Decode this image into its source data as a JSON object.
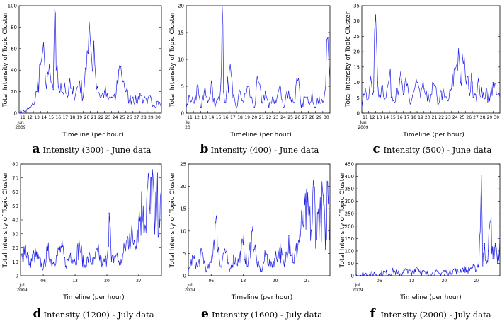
{
  "chart_data": [
    {
      "type": "line",
      "letter": "a",
      "caption": "Intensity (300) - June data",
      "ylabel": "Total Intensity of Topic Cluster",
      "xlabel": "Timeline (per hour)",
      "ylim": [
        0,
        100
      ],
      "yticks": [
        "0",
        "20",
        "40",
        "60",
        "80",
        "100"
      ],
      "xlim": [
        11,
        31
      ],
      "xticks": [
        "11",
        "12",
        "13",
        "14",
        "15",
        "16",
        "17",
        "18",
        "19",
        "20",
        "21",
        "22",
        "23",
        "24",
        "25",
        "26",
        "27",
        "28",
        "29",
        "30"
      ],
      "date_label": [
        "Jun",
        "2009"
      ],
      "series": [
        {
          "name": "intensity",
          "x": [
            11,
            12,
            12.6,
            13,
            13.5,
            14,
            14.3,
            14.7,
            15,
            15.5,
            15.8,
            16,
            16.2,
            16.5,
            17,
            17.4,
            17.8,
            18,
            18.5,
            19,
            19.5,
            20,
            20.3,
            20.7,
            21,
            21.3,
            21.5,
            21.8,
            22,
            22.5,
            23,
            23.5,
            24,
            24.5,
            25,
            25.3,
            25.7,
            26,
            26.5,
            27,
            27.5,
            28,
            28.5,
            29,
            29.5,
            30,
            30.5,
            31
          ],
          "values": [
            0,
            2,
            5,
            8,
            20,
            45,
            57,
            30,
            38,
            28,
            22,
            96,
            40,
            25,
            20,
            28,
            15,
            25,
            18,
            20,
            30,
            15,
            42,
            55,
            68,
            40,
            67,
            30,
            25,
            15,
            20,
            12,
            15,
            12,
            40,
            43,
            30,
            20,
            12,
            15,
            10,
            18,
            12,
            9,
            15,
            7,
            11,
            6
          ]
        }
      ]
    },
    {
      "type": "line",
      "letter": "b",
      "caption": "Intensity (400) - June data",
      "ylabel": "Total Intensity of Topic Cluster",
      "xlabel": "Timeline (per hour)",
      "ylim": [
        0,
        20
      ],
      "yticks": [
        "0",
        "5",
        "10",
        "15",
        "20"
      ],
      "xlim": [
        11,
        31
      ],
      "xticks": [
        "11",
        "12",
        "13",
        "14",
        "15",
        "16",
        "17",
        "18",
        "19",
        "20",
        "21",
        "22",
        "23",
        "24",
        "25",
        "26",
        "27",
        "28",
        "29",
        "30"
      ],
      "date_label": [
        "Ju",
        "20"
      ],
      "series": [
        {
          "name": "intensity",
          "x": [
            11,
            11.5,
            12,
            12.5,
            13,
            13.5,
            14,
            14.5,
            15,
            15.5,
            15.8,
            16,
            16.2,
            16.5,
            17,
            17.5,
            18,
            18.5,
            19,
            19.5,
            20,
            20.5,
            21,
            21.5,
            22,
            22.5,
            23,
            23.5,
            24,
            24.5,
            25,
            25.5,
            26,
            26.5,
            27,
            27.5,
            28,
            28.5,
            29,
            29.5,
            30,
            30.4,
            30.7,
            31
          ],
          "values": [
            1,
            3,
            2,
            5,
            1,
            4,
            2,
            6,
            1,
            3,
            5,
            20,
            4,
            2,
            8,
            3,
            1,
            4,
            2,
            5,
            3,
            1,
            6,
            2,
            4,
            1,
            3,
            2,
            5,
            1,
            4,
            3,
            2,
            6,
            1,
            3,
            2,
            4,
            1,
            3,
            2,
            5,
            14,
            6
          ]
        }
      ]
    },
    {
      "type": "line",
      "letter": "c",
      "caption": "Intensity (500) - June data",
      "ylabel": "Total Intensity of Topic Cluster",
      "xlabel": "Timeline (per hour)",
      "ylim": [
        0,
        35
      ],
      "yticks": [
        "0",
        "5",
        "10",
        "15",
        "20",
        "25",
        "30",
        "35"
      ],
      "xlim": [
        11,
        31
      ],
      "xticks": [
        "11",
        "12",
        "13",
        "14",
        "15",
        "16",
        "17",
        "18",
        "19",
        "20",
        "21",
        "22",
        "23",
        "24",
        "25",
        "26",
        "27",
        "28",
        "29",
        "30"
      ],
      "date_label": [
        "Jun",
        "2009"
      ],
      "series": [
        {
          "name": "intensity",
          "x": [
            11,
            11.5,
            12,
            12.4,
            12.7,
            13,
            13.3,
            13.6,
            14,
            14.5,
            15,
            15.5,
            16,
            16.5,
            17,
            17.5,
            18,
            18.5,
            19,
            19.5,
            20,
            20.5,
            21,
            21.5,
            22,
            22.5,
            23,
            23.5,
            24,
            24.5,
            25,
            25.3,
            25.7,
            26,
            26.5,
            27,
            27.5,
            28,
            28.5,
            29,
            29.5,
            30,
            30.5,
            31
          ],
          "values": [
            2,
            8,
            5,
            10,
            7,
            32,
            10,
            6,
            9,
            5,
            12,
            4,
            8,
            11,
            6,
            9,
            3,
            7,
            10,
            5,
            8,
            4,
            6,
            9,
            3,
            7,
            5,
            4,
            8,
            14,
            21,
            10,
            16,
            12,
            8,
            10,
            6,
            9,
            5,
            8,
            4,
            10,
            6,
            5
          ]
        }
      ]
    },
    {
      "type": "line",
      "letter": "d",
      "caption": "Intensity (1200) - July data",
      "ylabel": "Total Intensity of Topic Cluster",
      "xlabel": "Timeline (per hour)",
      "ylim": [
        0,
        80
      ],
      "yticks": [
        "0",
        "10",
        "20",
        "30",
        "40",
        "50",
        "60",
        "70",
        "80"
      ],
      "xlim": [
        1,
        32
      ],
      "xticks": [
        "06",
        "13",
        "20",
        "27"
      ],
      "xtick_values": [
        6,
        13,
        20,
        27
      ],
      "date_label": [
        "Jul",
        "2009"
      ],
      "series": [
        {
          "name": "intensity",
          "x": [
            1,
            2,
            3,
            4,
            5,
            6,
            7,
            8,
            9,
            10,
            11,
            12,
            13,
            14,
            15,
            16,
            17,
            18,
            19,
            20,
            20.5,
            21,
            22,
            23,
            24,
            25,
            26,
            27,
            28,
            28.5,
            29,
            29.5,
            30,
            30.5,
            31,
            31.5,
            32
          ],
          "values": [
            10,
            22,
            8,
            15,
            12,
            5,
            18,
            9,
            14,
            20,
            7,
            16,
            10,
            22,
            6,
            13,
            9,
            17,
            8,
            12,
            45,
            10,
            15,
            8,
            20,
            30,
            25,
            40,
            50,
            35,
            65,
            45,
            76,
            30,
            55,
            40,
            45
          ]
        }
      ]
    },
    {
      "type": "line",
      "letter": "e",
      "caption": "Intensity (1600) - July data",
      "ylabel": "Total Intensity of Topic Cluster",
      "xlabel": "Timeline (per hour)",
      "ylim": [
        0,
        25
      ],
      "yticks": [
        "0",
        "5",
        "10",
        "15",
        "20",
        "25"
      ],
      "xlim": [
        1,
        32
      ],
      "xticks": [
        "06",
        "13",
        "20",
        "27"
      ],
      "xtick_values": [
        6,
        13,
        20,
        27
      ],
      "date_label": [
        "Jul",
        "2009"
      ],
      "series": [
        {
          "name": "intensity",
          "x": [
            1,
            2,
            3,
            4,
            5,
            6,
            7,
            8,
            9,
            10,
            11,
            12,
            13,
            14,
            15,
            16,
            17,
            18,
            19,
            20,
            21,
            22,
            23,
            24,
            25,
            26,
            27,
            28,
            28.5,
            29,
            29.5,
            30,
            30.5,
            31,
            31.5,
            32
          ],
          "values": [
            1,
            4,
            2,
            5,
            1,
            3,
            12,
            2,
            6,
            1,
            4,
            3,
            7,
            2,
            10,
            3,
            1,
            5,
            2,
            4,
            6,
            2,
            9,
            3,
            7,
            12,
            14,
            10,
            20,
            8,
            15,
            12,
            18,
            6,
            21,
            10
          ]
        }
      ]
    },
    {
      "type": "line",
      "letter": "f",
      "caption": "Intensity (2000) - July data",
      "ylabel": "Total Intensity of Topic Cluster",
      "xlabel": "Timeline (per hour)",
      "ylim": [
        0,
        450
      ],
      "yticks": [
        "0",
        "50",
        "100",
        "150",
        "200",
        "250",
        "300",
        "350",
        "400",
        "450"
      ],
      "xlim": [
        1,
        32
      ],
      "xticks": [
        "06",
        "13",
        "20",
        "27"
      ],
      "xtick_values": [
        6,
        13,
        20,
        27
      ],
      "date_label": [
        "Jul",
        "2009"
      ],
      "series": [
        {
          "name": "intensity",
          "x": [
            1,
            2,
            3,
            4,
            5,
            6,
            7,
            8,
            9,
            10,
            11,
            12,
            13,
            14,
            15,
            16,
            17,
            18,
            19,
            20,
            21,
            22,
            23,
            24,
            25,
            26,
            27,
            27.5,
            28,
            28.3,
            28.7,
            29,
            29.5,
            30,
            30.5,
            31,
            31.5,
            32
          ],
          "values": [
            5,
            2,
            8,
            3,
            10,
            4,
            15,
            6,
            20,
            8,
            12,
            25,
            10,
            35,
            15,
            10,
            5,
            12,
            8,
            20,
            10,
            25,
            15,
            30,
            20,
            35,
            25,
            60,
            405,
            40,
            130,
            60,
            100,
            220,
            70,
            130,
            50,
            160
          ]
        }
      ]
    }
  ]
}
